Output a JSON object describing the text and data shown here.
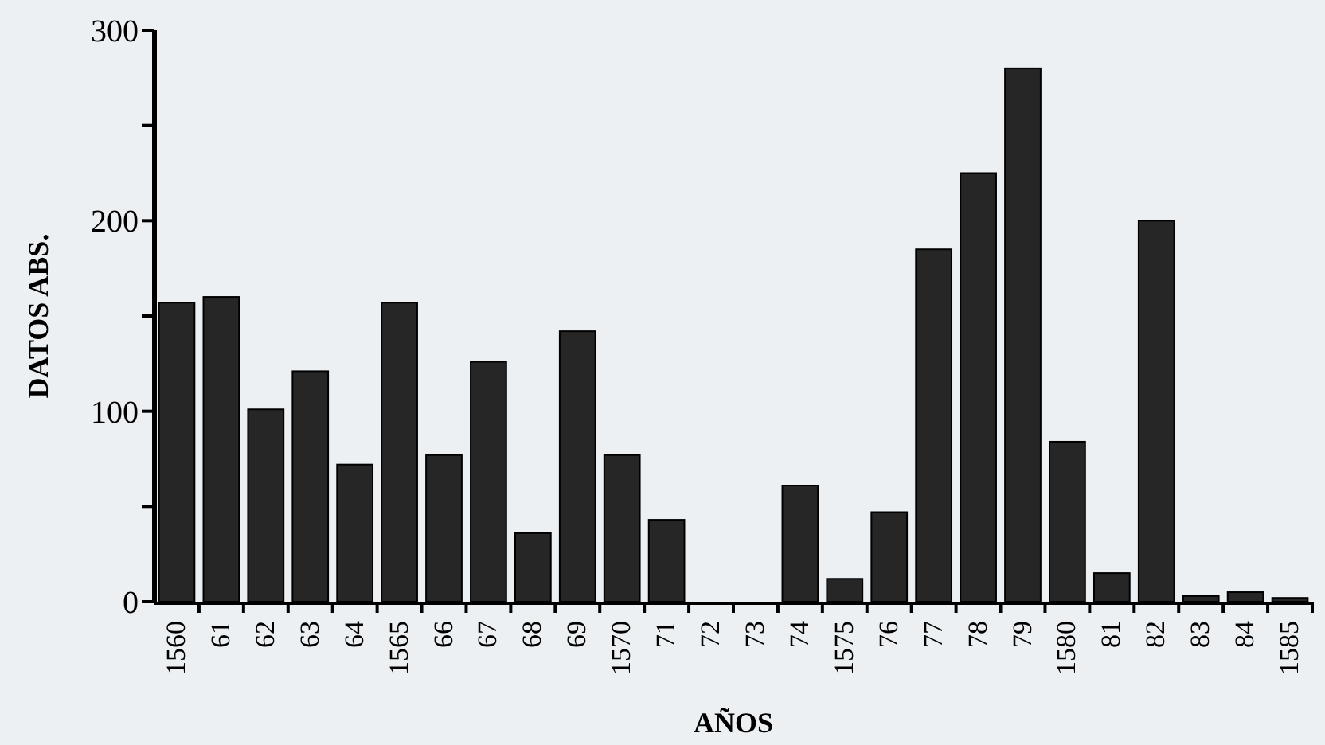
{
  "chart_data": {
    "type": "bar",
    "xlabel": "AÑOS",
    "ylabel": "DATOS ABS.",
    "categories": [
      "1560",
      "61",
      "62",
      "63",
      "64",
      "1565",
      "66",
      "67",
      "68",
      "69",
      "1570",
      "71",
      "72",
      "73",
      "74",
      "1575",
      "76",
      "77",
      "78",
      "79",
      "1580",
      "81",
      "82",
      "83",
      "84",
      "1585"
    ],
    "values": [
      157,
      160,
      101,
      121,
      72,
      157,
      77,
      126,
      36,
      142,
      77,
      43,
      0,
      0,
      61,
      12,
      47,
      185,
      225,
      280,
      84,
      15,
      200,
      3,
      5,
      2
    ],
    "color": "#262626",
    "ylim": [
      0,
      300
    ],
    "yticks": [
      0,
      {
        "value": 50,
        "label": null
      },
      100,
      {
        "value": 150,
        "label": null
      },
      200,
      {
        "value": 250,
        "label": null
      },
      300
    ],
    "grid": false
  }
}
